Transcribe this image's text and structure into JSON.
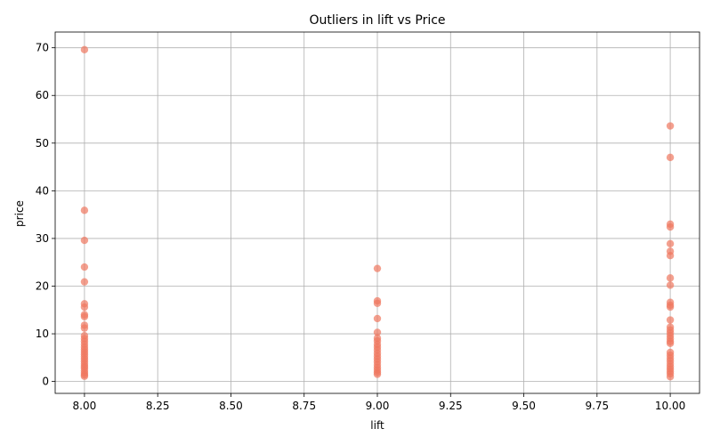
{
  "chart_data": {
    "type": "scatter",
    "title": "Outliers in lift vs Price",
    "xlabel": "lift",
    "ylabel": "price",
    "xlim": [
      7.9,
      10.1
    ],
    "ylim": [
      -2.5,
      73.3
    ],
    "xticks": [
      "8.00",
      "8.25",
      "8.50",
      "8.75",
      "9.00",
      "9.25",
      "9.50",
      "9.75",
      "10.00"
    ],
    "yticks": [
      "0",
      "10",
      "20",
      "30",
      "40",
      "50",
      "60",
      "70"
    ],
    "grid": true,
    "point_color": "#f07860",
    "series": [
      {
        "points": [
          [
            8,
            69.6
          ],
          [
            8,
            35.9
          ],
          [
            8,
            29.6
          ],
          [
            8,
            24.0
          ],
          [
            8,
            20.9
          ],
          [
            8,
            16.3
          ],
          [
            8,
            15.6
          ],
          [
            8,
            14.0
          ],
          [
            8,
            13.6
          ],
          [
            8,
            11.8
          ],
          [
            8,
            11.2
          ],
          [
            8,
            9.6
          ],
          [
            8,
            9.0
          ],
          [
            8,
            8.4
          ],
          [
            8,
            7.8
          ],
          [
            8,
            7.2
          ],
          [
            8,
            6.7
          ],
          [
            8,
            6.2
          ],
          [
            8,
            5.7
          ],
          [
            8,
            5.2
          ],
          [
            8,
            4.7
          ],
          [
            8,
            4.2
          ],
          [
            8,
            3.7
          ],
          [
            8,
            3.2
          ],
          [
            8,
            2.8
          ],
          [
            8,
            2.3
          ],
          [
            8,
            1.8
          ],
          [
            8,
            1.4
          ],
          [
            8,
            1.1
          ],
          [
            9,
            23.7
          ],
          [
            9,
            16.9
          ],
          [
            9,
            16.4
          ],
          [
            9,
            13.2
          ],
          [
            9,
            10.3
          ],
          [
            9,
            9.1
          ],
          [
            9,
            8.5
          ],
          [
            9,
            7.8
          ],
          [
            9,
            7.2
          ],
          [
            9,
            6.6
          ],
          [
            9,
            5.9
          ],
          [
            9,
            5.3
          ],
          [
            9,
            4.7
          ],
          [
            9,
            4.1
          ],
          [
            9,
            3.5
          ],
          [
            9,
            2.9
          ],
          [
            9,
            2.4
          ],
          [
            9,
            1.9
          ],
          [
            9,
            1.5
          ],
          [
            10,
            53.6
          ],
          [
            10,
            47.0
          ],
          [
            10,
            33.0
          ],
          [
            10,
            32.4
          ],
          [
            10,
            28.9
          ],
          [
            10,
            27.3
          ],
          [
            10,
            26.4
          ],
          [
            10,
            21.7
          ],
          [
            10,
            20.2
          ],
          [
            10,
            16.6
          ],
          [
            10,
            16.0
          ],
          [
            10,
            15.6
          ],
          [
            10,
            12.9
          ],
          [
            10,
            11.4
          ],
          [
            10,
            10.8
          ],
          [
            10,
            10.2
          ],
          [
            10,
            9.6
          ],
          [
            10,
            9.0
          ],
          [
            10,
            8.4
          ],
          [
            10,
            8.0
          ],
          [
            10,
            6.1
          ],
          [
            10,
            5.5
          ],
          [
            10,
            4.9
          ],
          [
            10,
            4.3
          ],
          [
            10,
            3.7
          ],
          [
            10,
            3.1
          ],
          [
            10,
            2.6
          ],
          [
            10,
            2.1
          ],
          [
            10,
            1.6
          ],
          [
            10,
            1.0
          ]
        ]
      }
    ]
  }
}
